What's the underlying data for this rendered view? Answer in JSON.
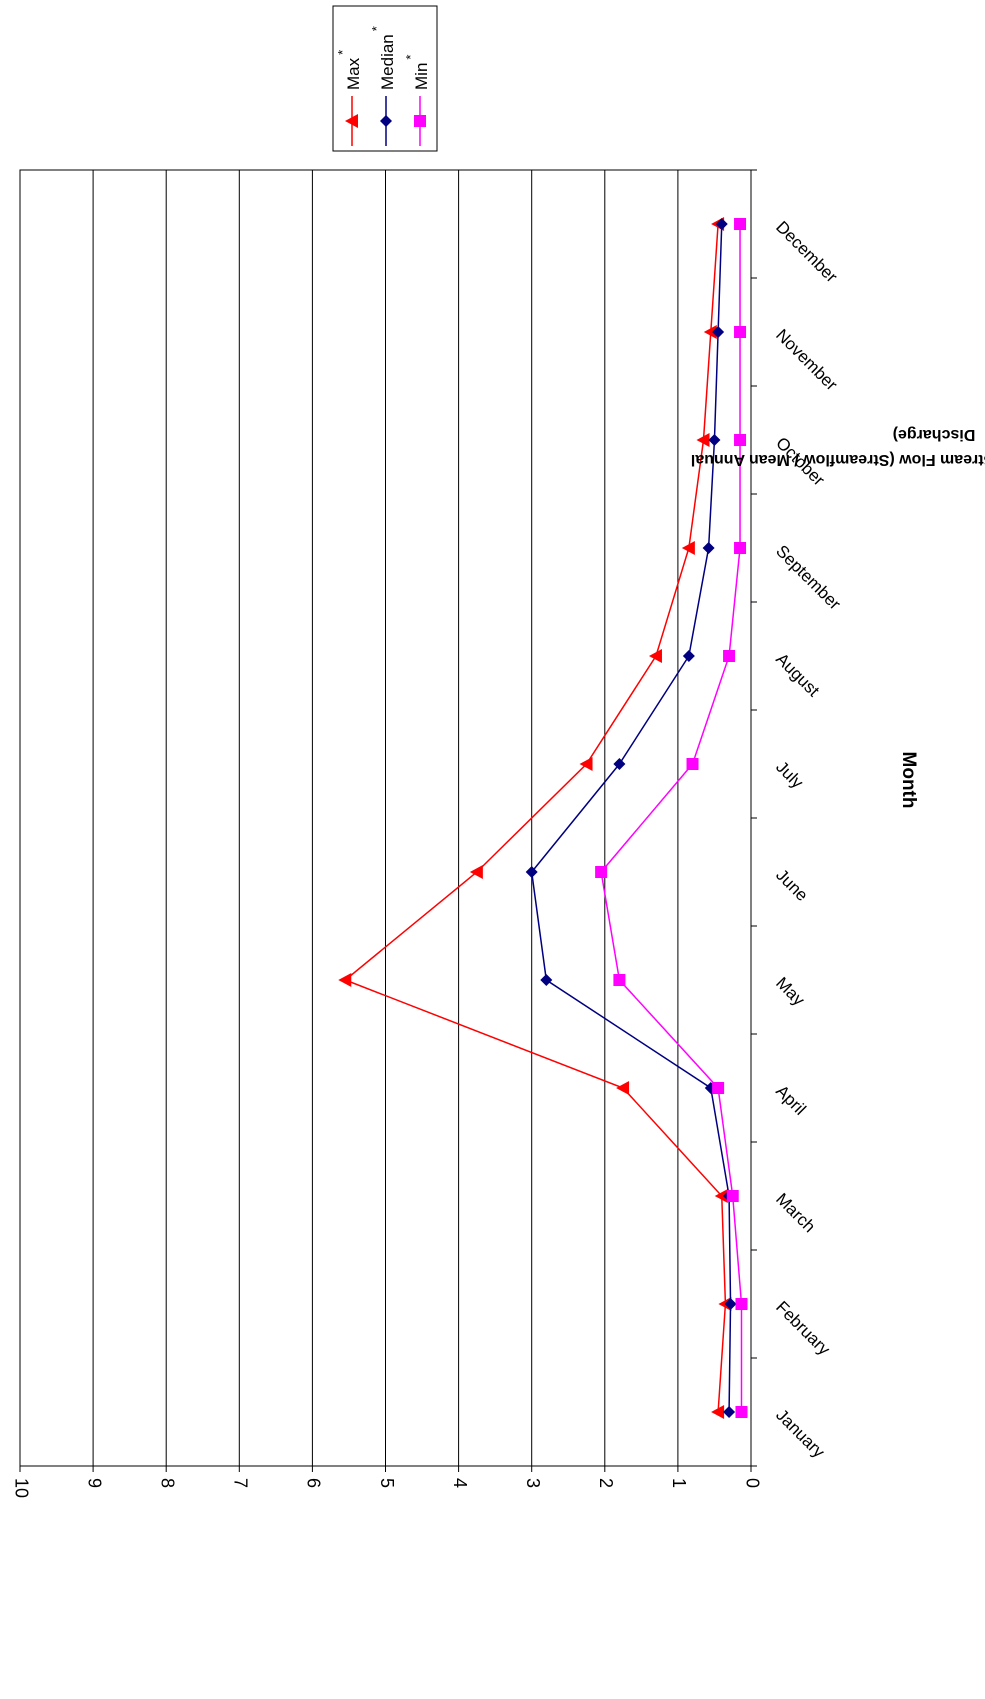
{
  "chart_data": {
    "type": "line",
    "orientation": "rotated-90-clockwise",
    "xlabel": "Month",
    "ylabel_line1": "Normalized Monthly Average Stream Flow (Streamflow / Mean Annual",
    "ylabel_line2": "Discharge)",
    "categories": [
      "January",
      "February",
      "March",
      "April",
      "May",
      "June",
      "July",
      "August",
      "September",
      "October",
      "November",
      "December"
    ],
    "ylim": [
      0,
      10
    ],
    "yticks": [
      "0",
      "1",
      "2",
      "3",
      "4",
      "5",
      "6",
      "7",
      "8",
      "9",
      "10"
    ],
    "grid": true,
    "legend_position": "top-right",
    "series": [
      {
        "name": "Max",
        "marker_label": "*",
        "color": "#ff0000",
        "marker": "triangle",
        "values": [
          0.45,
          0.35,
          0.4,
          1.75,
          5.55,
          3.75,
          2.25,
          1.3,
          0.85,
          0.65,
          0.55,
          0.45
        ]
      },
      {
        "name": "Median",
        "marker_label": "*",
        "color": "#000080",
        "marker": "diamond",
        "values": [
          0.3,
          0.28,
          0.3,
          0.55,
          2.8,
          3.0,
          1.8,
          0.85,
          0.58,
          0.5,
          0.45,
          0.4
        ]
      },
      {
        "name": "Min",
        "marker_label": "*",
        "color": "#ff00ff",
        "marker": "square",
        "values": [
          0.13,
          0.13,
          0.25,
          0.45,
          1.8,
          2.05,
          0.8,
          0.3,
          0.15,
          0.15,
          0.15,
          0.15
        ]
      }
    ]
  }
}
